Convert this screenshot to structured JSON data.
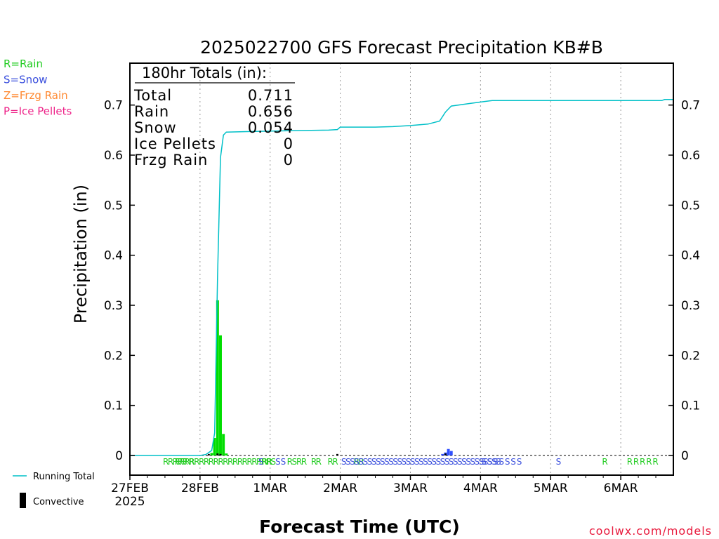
{
  "chart_data": {
    "type": "bar",
    "title": "2025022700 GFS Forecast Precipitation KB#B",
    "xlabel": "Forecast Time (UTC)",
    "ylabel": "Precipitation (in)",
    "ylim": [
      0,
      0.78
    ],
    "xlim_hours": [
      0,
      186
    ],
    "grid": "vertical dotted at each day",
    "yticks": [
      0,
      0.1,
      0.2,
      0.3,
      0.4,
      0.5,
      0.6,
      0.7
    ],
    "ytick_labels": [
      "0",
      "0.1",
      "0.2",
      "0.3",
      "0.4",
      "0.5",
      "0.6",
      "0.7"
    ],
    "xticks": [
      {
        "hour": 0,
        "label": "27FEB",
        "sub": "2025"
      },
      {
        "hour": 24,
        "label": "28FEB",
        "sub": ""
      },
      {
        "hour": 48,
        "label": "1MAR",
        "sub": ""
      },
      {
        "hour": 72,
        "label": "2MAR",
        "sub": ""
      },
      {
        "hour": 96,
        "label": "3MAR",
        "sub": ""
      },
      {
        "hour": 120,
        "label": "4MAR",
        "sub": ""
      },
      {
        "hour": 144,
        "label": "5MAR",
        "sub": ""
      },
      {
        "hour": 168,
        "label": "6MAR",
        "sub": ""
      }
    ],
    "totals_box": {
      "header": "180hr Totals (in):",
      "rows": [
        {
          "label": "Total",
          "value": "0.711"
        },
        {
          "label": "Rain",
          "value": "0.656"
        },
        {
          "label": "Snow",
          "value": "0.054"
        },
        {
          "label": "Ice Pellets",
          "value": "0"
        },
        {
          "label": "Frzg Rain",
          "value": "0"
        }
      ]
    },
    "precip_legend": [
      {
        "text": "R=Rain",
        "color": "#22cc22"
      },
      {
        "text": "S=Snow",
        "color": "#3a4fdd"
      },
      {
        "text": "Z=Frzg Rain",
        "color": "#ff8a33"
      },
      {
        "text": "P=Ice Pellets",
        "color": "#ee2288"
      }
    ],
    "bottom_legend": [
      {
        "text": "Running Total",
        "kind": "line",
        "color": "#00c0c8"
      },
      {
        "text": "Convective",
        "kind": "bar",
        "color": "#000000"
      }
    ],
    "series": [
      {
        "kind": "bar",
        "color": "#00dd00",
        "points": [
          {
            "hour": 28,
            "value": 0.005
          },
          {
            "hour": 29,
            "value": 0.035
          },
          {
            "hour": 30,
            "value": 0.31
          },
          {
            "hour": 31,
            "value": 0.24
          },
          {
            "hour": 32,
            "value": 0.043
          },
          {
            "hour": 33,
            "value": 0.004
          }
        ]
      },
      {
        "kind": "bar",
        "color": "#3050ff",
        "points": [
          {
            "hour": 107,
            "value": 0.003
          },
          {
            "hour": 108,
            "value": 0.006
          },
          {
            "hour": 109,
            "value": 0.013
          },
          {
            "hour": 110,
            "value": 0.009
          }
        ]
      },
      {
        "kind": "bar",
        "color": "#000000",
        "points": [
          {
            "hour": 27,
            "value": 0.003
          },
          {
            "hour": 30,
            "value": 0.004
          },
          {
            "hour": 31,
            "value": 0.003
          },
          {
            "hour": 71,
            "value": 0.003
          },
          {
            "hour": 108,
            "value": 0.004
          }
        ]
      },
      {
        "kind": "line",
        "color": "#00c0c8",
        "points": [
          {
            "hour": 0,
            "value": 0
          },
          {
            "hour": 24,
            "value": 0
          },
          {
            "hour": 26,
            "value": 0.002
          },
          {
            "hour": 28,
            "value": 0.01
          },
          {
            "hour": 29,
            "value": 0.045
          },
          {
            "hour": 30,
            "value": 0.355
          },
          {
            "hour": 31,
            "value": 0.595
          },
          {
            "hour": 32,
            "value": 0.64
          },
          {
            "hour": 33,
            "value": 0.646
          },
          {
            "hour": 40,
            "value": 0.647
          },
          {
            "hour": 56,
            "value": 0.649
          },
          {
            "hour": 68,
            "value": 0.65
          },
          {
            "hour": 71,
            "value": 0.651
          },
          {
            "hour": 72,
            "value": 0.656
          },
          {
            "hour": 84,
            "value": 0.656
          },
          {
            "hour": 90,
            "value": 0.657
          },
          {
            "hour": 96,
            "value": 0.659
          },
          {
            "hour": 102,
            "value": 0.662
          },
          {
            "hour": 106,
            "value": 0.668
          },
          {
            "hour": 108,
            "value": 0.686
          },
          {
            "hour": 110,
            "value": 0.698
          },
          {
            "hour": 116,
            "value": 0.703
          },
          {
            "hour": 120,
            "value": 0.706
          },
          {
            "hour": 124,
            "value": 0.709
          },
          {
            "hour": 140,
            "value": 0.709
          },
          {
            "hour": 160,
            "value": 0.709
          },
          {
            "hour": 182,
            "value": 0.709
          },
          {
            "hour": 183,
            "value": 0.711
          },
          {
            "hour": 186,
            "value": 0.711
          }
        ]
      }
    ],
    "ptype_markers": [
      {
        "text": "RRRRR R",
        "color": "#22cc22",
        "hour": 16.5
      },
      {
        "text": "RRRRRRRRRRRRRRRRRRRRS",
        "color": "#22cc22",
        "hour": 32.5
      },
      {
        "text": "S",
        "color": "#3a4fdd",
        "hour": 44.7
      },
      {
        "text": "RR",
        "color": "#22cc22",
        "hour": 46.8
      },
      {
        "text": "S",
        "color": "#3a4fdd",
        "hour": 50.5
      },
      {
        "text": "S",
        "color": "#3a4fdd",
        "hour": 52.3
      },
      {
        "text": "RS",
        "color": "#22cc22",
        "hour": 55.3
      },
      {
        "text": "RR",
        "color": "#22cc22",
        "hour": 58.6
      },
      {
        "text": "RR",
        "color": "#22cc22",
        "hour": 63.6
      },
      {
        "text": "RR",
        "color": "#22cc22",
        "hour": 69.3
      },
      {
        "text": "RR",
        "color": "#22cc22",
        "hour": 78.2
      },
      {
        "text": "SSSSSSSSSSSSSSSSSSSSSSSSSSSSSSSSSSSSS",
        "color": "#3a4fdd",
        "hour": 99.5
      },
      {
        "text": "S S S S S S S",
        "color": "#3a4fdd",
        "hour": 127
      },
      {
        "text": "S",
        "color": "#3a4fdd",
        "hour": 146.5
      },
      {
        "text": "R",
        "color": "#22cc22",
        "hour": 162.4
      },
      {
        "text": "R R R R R",
        "color": "#22cc22",
        "hour": 175.3
      }
    ],
    "credit": {
      "text": "coolwx.com/models",
      "color": "#e8193c"
    }
  }
}
